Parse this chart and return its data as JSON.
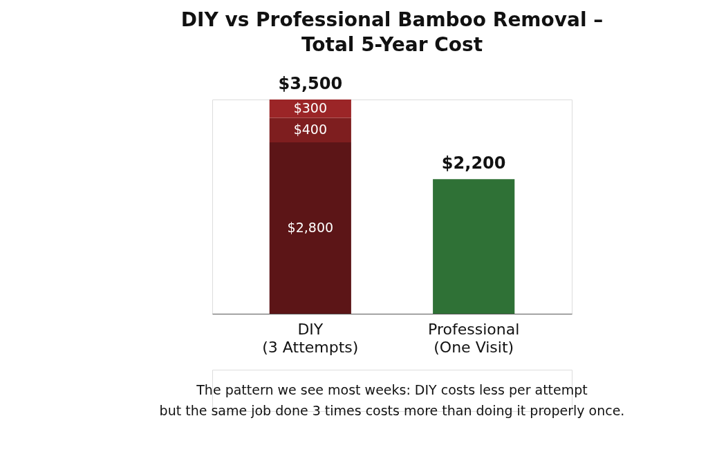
{
  "chart_data": {
    "type": "bar",
    "title": "DIY vs Professional Bamboo Removal –\nTotal 5-Year Cost",
    "categories": [
      "DIY\n(3 Attempts)",
      "Professional\n(One Visit)"
    ],
    "stacked": true,
    "series": [
      {
        "colors": [
          "#5c1517",
          "#2f7136"
        ],
        "values": [
          2800,
          2200
        ],
        "value_labels": [
          "$2,800",
          null
        ]
      },
      {
        "color": "#7e1e1f",
        "values": [
          400,
          null
        ],
        "value_labels": [
          "$400",
          null
        ]
      },
      {
        "color": "#9b2527",
        "values": [
          300,
          null
        ],
        "value_labels": [
          "$300",
          null
        ]
      }
    ],
    "totals": [
      "$3,500",
      "$2,200"
    ],
    "legend": false,
    "grid": false,
    "annotations": [
      "The pattern we see most weeks: DIY costs less per attempt\nbut the same job done 3 times costs more than doing it properly once."
    ]
  }
}
